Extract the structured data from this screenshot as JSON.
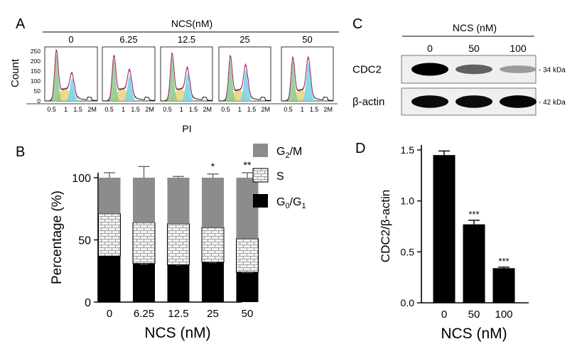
{
  "panel_letters": {
    "a": "A",
    "b": "B",
    "c": "C",
    "d": "D"
  },
  "colors": {
    "g2m": "#8c8c8c",
    "s": "#f2f2f2",
    "g0g1": "#000000",
    "g1_fill": "#8cc98a",
    "s_fill": "#e8d27a",
    "g2_fill": "#7ed3e6",
    "model_line": "#d0308a"
  },
  "panelA": {
    "header": "NCS(nM)",
    "doses": [
      "0",
      "6.25",
      "12.5",
      "25",
      "50"
    ],
    "ylabel": "Count",
    "xlabel": "PI",
    "yticks": [
      "250",
      "200",
      "150",
      "100",
      "50",
      "0"
    ],
    "xticks": [
      "0.5",
      "1",
      "1.5",
      "2M"
    ]
  },
  "panelC": {
    "header": "NCS (nM)",
    "lanes": [
      "0",
      "50",
      "100"
    ],
    "rows": [
      {
        "label": "CDC2",
        "size": "- 34 kDa",
        "intensity": [
          1.0,
          0.55,
          0.28
        ]
      },
      {
        "label": "β-actin",
        "size": "- 42 kDa",
        "intensity": [
          0.95,
          0.95,
          0.97
        ]
      }
    ]
  },
  "chart_data": [
    {
      "panel": "B",
      "type": "bar",
      "stacked": true,
      "categories": [
        "0",
        "6.25",
        "12.5",
        "25",
        "50"
      ],
      "series": [
        {
          "name": "G0/G1",
          "values": [
            37,
            31,
            30,
            32,
            24
          ],
          "errors": [
            5,
            1,
            3,
            2,
            1
          ],
          "sig": [
            "",
            "**",
            "*",
            "**",
            "***"
          ]
        },
        {
          "name": "S",
          "values": [
            34,
            33,
            33,
            28,
            27
          ],
          "errors": [
            8,
            1,
            2,
            5,
            2
          ],
          "sig": [
            "",
            "*",
            "*",
            "",
            "*"
          ]
        },
        {
          "name": "G2/M",
          "values": [
            29,
            36,
            37,
            40,
            49
          ],
          "errors": [
            4,
            9,
            1,
            3,
            4
          ],
          "sig": [
            "",
            "",
            "",
            "*",
            "**"
          ]
        }
      ],
      "legend": [
        {
          "name": "G2/M",
          "main": "G",
          "sub": "2",
          "rest": "/M"
        },
        {
          "name": "S",
          "main": "S",
          "sub": "",
          "rest": ""
        },
        {
          "name": "G0/G1",
          "main": "G",
          "sub": "0",
          "rest": "/G",
          "sub2": "1"
        }
      ],
      "xlabel": "NCS (nM)",
      "ylabel": "Percentage (%)",
      "ylim": [
        0,
        100
      ],
      "yticks": [
        0,
        50,
        100
      ]
    },
    {
      "panel": "D",
      "type": "bar",
      "categories": [
        "0",
        "50",
        "100"
      ],
      "values": [
        1.45,
        0.77,
        0.34
      ],
      "errors": [
        0.04,
        0.04,
        0.01
      ],
      "sig": [
        "",
        "***",
        "***"
      ],
      "xlabel": "NCS (nM)",
      "ylabel": "CDC2/β-actin",
      "ylim": [
        0,
        1.5
      ],
      "yticks": [
        "0.0",
        "0.5",
        "1.0",
        "1.5"
      ]
    }
  ]
}
